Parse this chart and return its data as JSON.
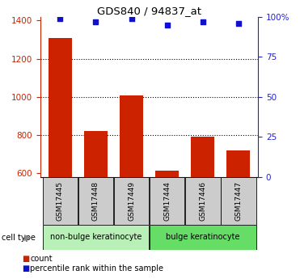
{
  "title": "GDS840 / 94837_at",
  "samples": [
    "GSM17445",
    "GSM17448",
    "GSM17449",
    "GSM17444",
    "GSM17446",
    "GSM17447"
  ],
  "counts": [
    1310,
    820,
    1010,
    615,
    790,
    720
  ],
  "percentiles": [
    99,
    97,
    99,
    95,
    97,
    96
  ],
  "ylim_left": [
    580,
    1420
  ],
  "ylim_right": [
    0,
    100
  ],
  "yticks_left": [
    600,
    800,
    1000,
    1200,
    1400
  ],
  "yticks_right": [
    0,
    25,
    50,
    75,
    100
  ],
  "ytick_labels_right": [
    "0",
    "25",
    "50",
    "75",
    "100%"
  ],
  "groups": [
    {
      "label": "non-bulge keratinocyte",
      "samples": [
        0,
        1,
        2
      ],
      "color": "#b8f0b8"
    },
    {
      "label": "bulge keratinocyte",
      "samples": [
        3,
        4,
        5
      ],
      "color": "#66dd66"
    }
  ],
  "bar_color": "#cc2200",
  "dot_color": "#1111cc",
  "left_axis_color": "#cc2200",
  "right_axis_color": "#2222cc",
  "sample_box_color": "#cccccc",
  "cell_type_arrow_color": "#888888"
}
